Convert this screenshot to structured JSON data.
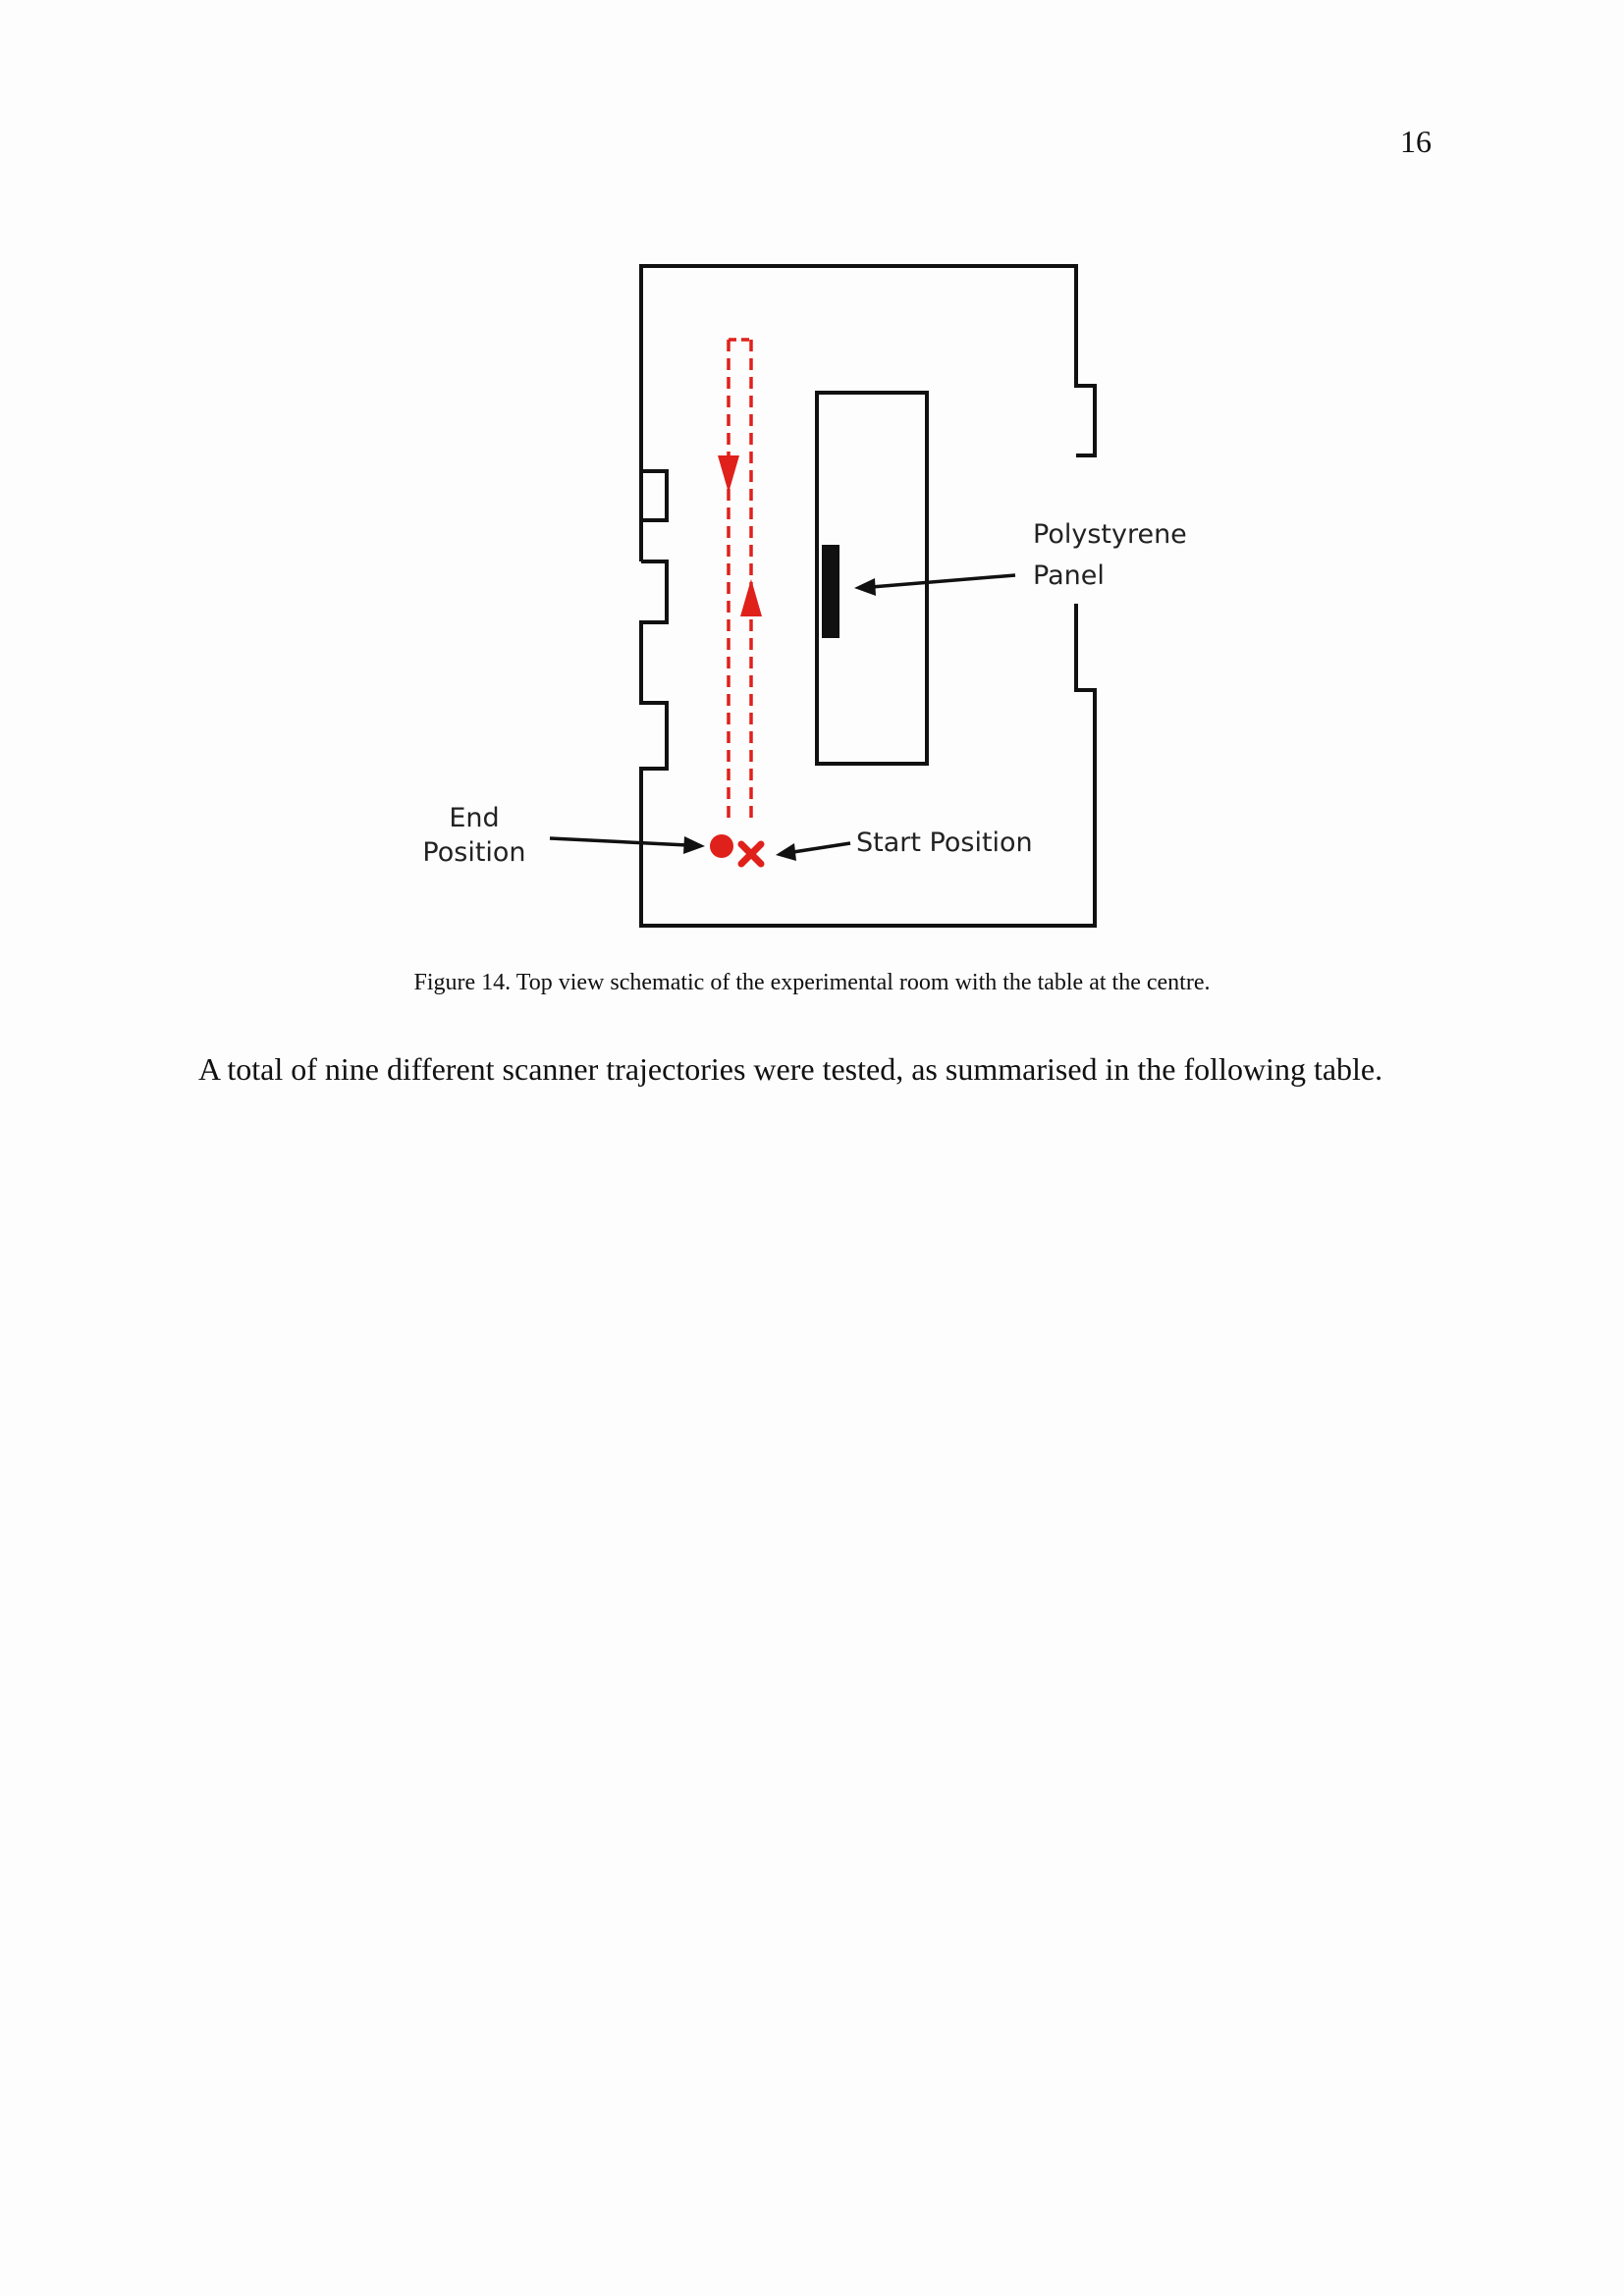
{
  "page": {
    "number": "16"
  },
  "figure": {
    "labels": {
      "polystyrene_line1": "Polystyrene",
      "polystyrene_line2": "Panel",
      "end_line1": "End",
      "end_line2": "Position",
      "start": "Start Position"
    },
    "colors": {
      "trajectory": "#e0201b",
      "outline": "#111111"
    },
    "caption": "Figure 14. Top view schematic of the experimental room with the table at the centre."
  },
  "body": {
    "paragraph": "A total of nine different scanner trajectories were tested, as summarised in the following table."
  }
}
